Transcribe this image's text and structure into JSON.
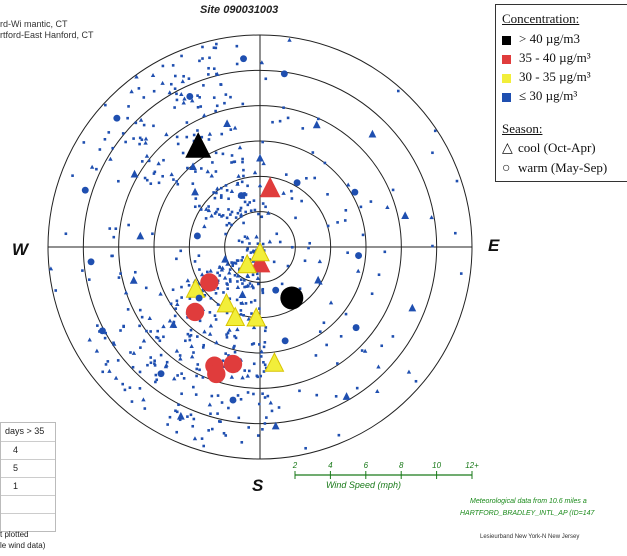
{
  "site_title": "Site 090031003",
  "location_lines": [
    "rd-Wi mantic, CT",
    "rtford-East Hanford, CT"
  ],
  "directions": {
    "west": "W",
    "east": "E",
    "south": "S"
  },
  "legend": {
    "concentration_title": "Concentration:",
    "concentration_items": [
      {
        "label": "> 40 µg/m3",
        "color": "#000000"
      },
      {
        "label": "35 - 40 µg/m³",
        "color": "#e03c3c"
      },
      {
        "label": "30 - 35 µg/m³",
        "color": "#f2ee3a"
      },
      {
        "label": "≤ 30 µg/m³",
        "color": "#1f4fb0"
      }
    ],
    "season_title": "Season:",
    "season_items": [
      {
        "symbol": "△",
        "label": "cool (Oct-Apr)"
      },
      {
        "symbol": "○",
        "label": "warm (May-Sep)"
      }
    ]
  },
  "count_table": {
    "header": "days > 35",
    "values": [
      "4",
      "5",
      "1",
      "",
      ""
    ]
  },
  "footnotes": [
    "t plotted",
    "le wind data)"
  ],
  "wind_speed_scale": {
    "label": "Wind Speed (mph)",
    "ticks": [
      "2",
      "4",
      "6",
      "8",
      "10",
      "12+"
    ]
  },
  "met_note": [
    "Meteorological data from 10.6 miles a",
    "HARTFORD_BRADLEY_INTL_AP (ID=147"
  ],
  "credit": "Lesieurband New York-N New Jersey",
  "chart_data": {
    "type": "scatter",
    "subtype": "pollution-rose (polar)",
    "title": "Site 090031003",
    "angle_labels": [
      "W",
      "E",
      "S"
    ],
    "radial_quantity": "Wind Speed (mph)",
    "radial_ticks": [
      2,
      4,
      6,
      8,
      10,
      12
    ],
    "radial_max": 12,
    "grid": true,
    "legend_position": "top-right",
    "series": [
      {
        "name": "> 40 µg/m3",
        "color": "#000000",
        "points": [
          {
            "dir_deg": 328,
            "speed": 6.6,
            "season": "cool"
          },
          {
            "dir_deg": 148,
            "speed": 3.4,
            "season": "warm"
          }
        ]
      },
      {
        "name": "35 - 40 µg/m³",
        "color": "#e03c3c",
        "points": [
          {
            "dir_deg": 10,
            "speed": 3.3,
            "season": "cool"
          },
          {
            "dir_deg": 180,
            "speed": 1.0,
            "season": "cool"
          },
          {
            "dir_deg": 235,
            "speed": 3.5,
            "season": "warm"
          },
          {
            "dir_deg": 225,
            "speed": 5.2,
            "season": "warm"
          },
          {
            "dir_deg": 201,
            "speed": 7.2,
            "season": "warm"
          },
          {
            "dir_deg": 199,
            "speed": 7.6,
            "season": "warm"
          },
          {
            "dir_deg": 193,
            "speed": 6.8,
            "season": "warm"
          }
        ]
      },
      {
        "name": "30 - 35 µg/m³",
        "color": "#f2ee3a",
        "points": [
          {
            "dir_deg": 180,
            "speed": 0.4,
            "season": "cool"
          },
          {
            "dir_deg": 214,
            "speed": 1.3,
            "season": "cool"
          },
          {
            "dir_deg": 236,
            "speed": 4.4,
            "season": "cool"
          },
          {
            "dir_deg": 210,
            "speed": 3.8,
            "season": "cool"
          },
          {
            "dir_deg": 199,
            "speed": 4.3,
            "season": "cool"
          },
          {
            "dir_deg": 183,
            "speed": 4.1,
            "season": "cool"
          },
          {
            "dir_deg": 173,
            "speed": 6.7,
            "season": "cool"
          }
        ]
      },
      {
        "name": "≤ 30 µg/m³",
        "color": "#1f4fb0",
        "points": [
          {
            "dir_deg": 0,
            "speed": 5.0,
            "season": "cool"
          },
          {
            "dir_deg": 25,
            "speed": 7.6,
            "season": "cool"
          },
          {
            "dir_deg": 45,
            "speed": 9.0,
            "season": "cool"
          },
          {
            "dir_deg": 60,
            "speed": 6.2,
            "season": "warm"
          },
          {
            "dir_deg": 78,
            "speed": 8.4,
            "season": "cool"
          },
          {
            "dir_deg": 95,
            "speed": 5.6,
            "season": "warm"
          },
          {
            "dir_deg": 112,
            "speed": 9.3,
            "season": "cool"
          },
          {
            "dir_deg": 130,
            "speed": 7.1,
            "season": "warm"
          },
          {
            "dir_deg": 150,
            "speed": 9.8,
            "season": "cool"
          },
          {
            "dir_deg": 165,
            "speed": 5.5,
            "season": "warm"
          },
          {
            "dir_deg": 175,
            "speed": 10.2,
            "season": "cool"
          },
          {
            "dir_deg": 190,
            "speed": 8.8,
            "season": "warm"
          },
          {
            "dir_deg": 205,
            "speed": 10.6,
            "season": "cool"
          },
          {
            "dir_deg": 218,
            "speed": 9.1,
            "season": "warm"
          },
          {
            "dir_deg": 228,
            "speed": 6.6,
            "season": "cool"
          },
          {
            "dir_deg": 242,
            "speed": 10.1,
            "season": "warm"
          },
          {
            "dir_deg": 255,
            "speed": 7.4,
            "season": "cool"
          },
          {
            "dir_deg": 265,
            "speed": 9.6,
            "season": "warm"
          },
          {
            "dir_deg": 275,
            "speed": 6.8,
            "season": "cool"
          },
          {
            "dir_deg": 288,
            "speed": 10.4,
            "season": "warm"
          },
          {
            "dir_deg": 300,
            "speed": 8.2,
            "season": "cool"
          },
          {
            "dir_deg": 312,
            "speed": 10.9,
            "season": "warm"
          },
          {
            "dir_deg": 320,
            "speed": 5.9,
            "season": "cool"
          },
          {
            "dir_deg": 335,
            "speed": 9.4,
            "season": "warm"
          },
          {
            "dir_deg": 345,
            "speed": 7.2,
            "season": "cool"
          },
          {
            "dir_deg": 355,
            "speed": 10.7,
            "season": "warm"
          },
          {
            "dir_deg": 8,
            "speed": 9.9,
            "season": "warm"
          },
          {
            "dir_deg": 30,
            "speed": 4.2,
            "season": "warm"
          },
          {
            "dir_deg": 120,
            "speed": 3.8,
            "season": "cool"
          },
          {
            "dir_deg": 160,
            "speed": 2.6,
            "season": "warm"
          },
          {
            "dir_deg": 200,
            "speed": 2.9,
            "season": "cool"
          },
          {
            "dir_deg": 230,
            "speed": 4.5,
            "season": "warm"
          },
          {
            "dir_deg": 250,
            "speed": 2.1,
            "season": "cool"
          },
          {
            "dir_deg": 280,
            "speed": 3.6,
            "season": "warm"
          },
          {
            "dir_deg": 310,
            "speed": 4.8,
            "season": "cool"
          },
          {
            "dir_deg": 340,
            "speed": 3.1,
            "season": "warm"
          }
        ]
      }
    ]
  }
}
